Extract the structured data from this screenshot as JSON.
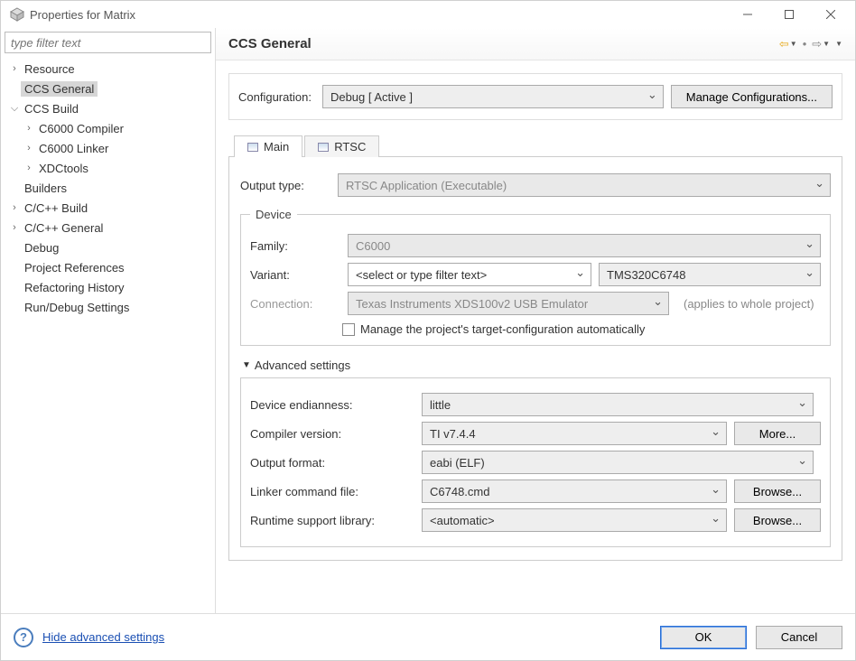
{
  "window": {
    "title": "Properties for Matrix"
  },
  "sidebar": {
    "filter_placeholder": "type filter text",
    "items": [
      {
        "label": "Resource",
        "expandable": true,
        "expanded": false,
        "depth": 0
      },
      {
        "label": "CCS General",
        "expandable": false,
        "depth": 0,
        "selected": true
      },
      {
        "label": "CCS Build",
        "expandable": true,
        "expanded": true,
        "depth": 0
      },
      {
        "label": "C6000 Compiler",
        "expandable": true,
        "expanded": false,
        "depth": 1
      },
      {
        "label": "C6000 Linker",
        "expandable": true,
        "expanded": false,
        "depth": 1
      },
      {
        "label": "XDCtools",
        "expandable": true,
        "expanded": false,
        "depth": 1
      },
      {
        "label": "Builders",
        "expandable": false,
        "depth": 0
      },
      {
        "label": "C/C++ Build",
        "expandable": true,
        "expanded": false,
        "depth": 0
      },
      {
        "label": "C/C++ General",
        "expandable": true,
        "expanded": false,
        "depth": 0
      },
      {
        "label": "Debug",
        "expandable": false,
        "depth": 0
      },
      {
        "label": "Project References",
        "expandable": false,
        "depth": 0
      },
      {
        "label": "Refactoring History",
        "expandable": false,
        "depth": 0
      },
      {
        "label": "Run/Debug Settings",
        "expandable": false,
        "depth": 0
      }
    ]
  },
  "header": {
    "title": "CCS General",
    "nav_back_color": "#e6a817",
    "nav_fwd_color": "#888888"
  },
  "config": {
    "label": "Configuration:",
    "value": "Debug  [ Active ]",
    "manage_btn": "Manage Configurations..."
  },
  "tabs": {
    "items": [
      {
        "label": "Main",
        "active": true
      },
      {
        "label": "RTSC",
        "active": false
      }
    ]
  },
  "main_tab": {
    "output_type": {
      "label": "Output type:",
      "value": "RTSC Application (Executable)",
      "disabled": true
    },
    "device": {
      "legend": "Device",
      "family": {
        "label": "Family:",
        "value": "C6000",
        "disabled": true
      },
      "variant": {
        "label": "Variant:",
        "filter_placeholder": "<select or type filter text>",
        "value": "TMS320C6748"
      },
      "connection": {
        "label": "Connection:",
        "value": "Texas Instruments XDS100v2 USB Emulator",
        "disabled": true,
        "note": "(applies to whole project)"
      },
      "manage_checkbox": "Manage the project's target-configuration automatically"
    },
    "advanced": {
      "toggle": "Advanced settings",
      "rows": [
        {
          "label": "Device endianness:",
          "value": "little",
          "btn": null
        },
        {
          "label": "Compiler version:",
          "value": "TI v7.4.4",
          "btn": "More..."
        },
        {
          "label": "Output format:",
          "value": "eabi (ELF)",
          "btn": null
        },
        {
          "label": "Linker command file:",
          "value": "C6748.cmd",
          "btn": "Browse..."
        },
        {
          "label": "Runtime support library:",
          "value": "<automatic>",
          "btn": "Browse..."
        }
      ]
    }
  },
  "footer": {
    "link": "Hide advanced settings",
    "ok": "OK",
    "cancel": "Cancel"
  },
  "colors": {
    "border": "#cccccc",
    "field_bg": "#eeeeee",
    "accent_blue": "#2a6fd6"
  }
}
